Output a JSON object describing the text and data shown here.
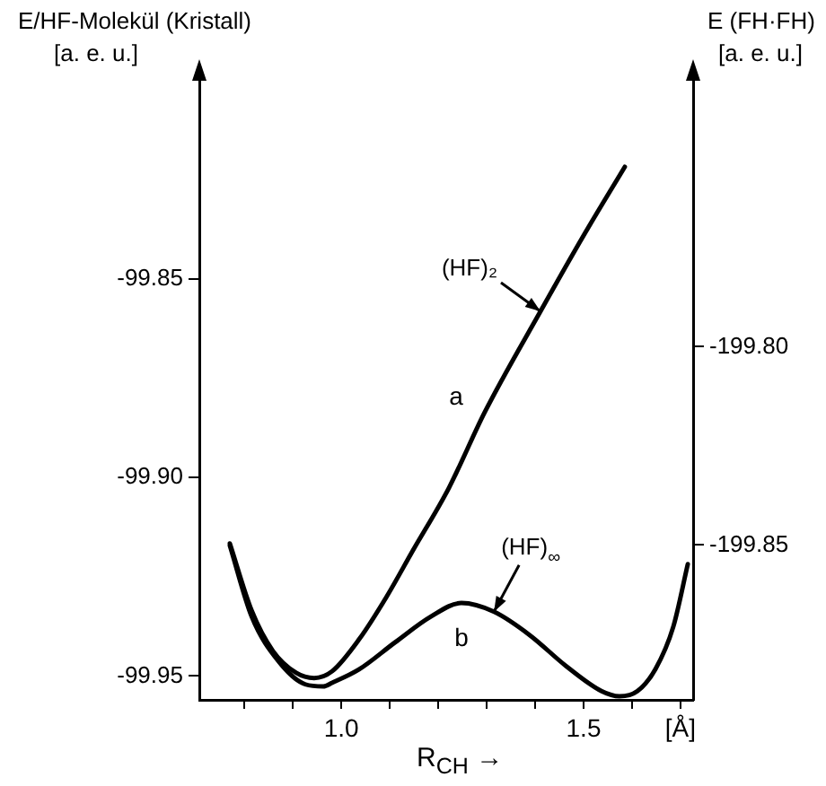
{
  "chart_data": {
    "type": "line",
    "xlabel": "R$_{CH}$ →",
    "ylabel": "E/HF-Molekül (Kristall)\n[a. e. u.]",
    "y2label": "E (FH·FH)\n[a. e. u.]",
    "x": [
      0.77,
      0.815,
      0.87,
      0.926,
      0.963,
      0.981,
      1.037,
      1.111,
      1.185,
      1.248,
      1.315,
      1.389,
      1.463,
      1.537,
      1.574,
      1.611,
      1.648,
      1.685,
      1.715
    ],
    "series": [
      {
        "name": "a",
        "color": "#000000",
        "axis": "y2",
        "x": [
          0.77,
          0.815,
          0.859,
          0.907,
          0.944,
          0.981,
          1.037,
          1.093,
          1.148,
          1.222,
          1.296,
          1.411,
          1.5,
          1.585
        ],
        "values": [
          -199.8496,
          -199.8665,
          -199.8767,
          -199.8822,
          -199.8835,
          -199.8818,
          -199.8737,
          -199.8631,
          -199.8513,
          -199.8356,
          -199.8165,
          -199.7911,
          -199.772,
          -199.7547
        ]
      },
      {
        "name": "b",
        "color": "#000000",
        "values": [
          -99.9171,
          -99.935,
          -99.9462,
          -99.9521,
          -99.9526,
          -99.9517,
          -99.9483,
          -99.9415,
          -99.935,
          -99.9316,
          -99.9338,
          -99.9397,
          -99.9474,
          -99.9538,
          -99.9551,
          -99.9538,
          -99.9483,
          -99.9376,
          -99.9218
        ]
      }
    ],
    "xlim": [
      0.707,
      1.726
    ],
    "xticks": [
      {
        "value": 0.8,
        "label": null
      },
      {
        "value": 0.9,
        "label": null
      },
      {
        "value": 1.0,
        "label": "1.0"
      },
      {
        "value": 1.1,
        "label": null
      },
      {
        "value": 1.2,
        "label": null
      },
      {
        "value": 1.3,
        "label": null
      },
      {
        "value": 1.4,
        "label": null
      },
      {
        "value": 1.5,
        "label": "1.5"
      },
      {
        "value": 1.6,
        "label": null
      },
      {
        "value": 1.7,
        "label": "[Å]"
      }
    ],
    "ylim": [
      -99.956,
      -99.8
    ],
    "yticks": [
      {
        "value": -99.95,
        "label": "-99.95"
      },
      {
        "value": -99.9,
        "label": "-99.90"
      },
      {
        "value": -99.85,
        "label": "-99.85"
      }
    ],
    "y2lim": [
      -199.889,
      -199.733
    ],
    "y2ticks": [
      {
        "value": -199.85,
        "label": "-199.85"
      },
      {
        "value": -199.8,
        "label": "-199.80"
      }
    ],
    "annotations": [
      {
        "text": "(HF)₂",
        "x": 1.411,
        "y": -99.8581
      },
      {
        "text": "(HF)$_{∞}$",
        "x": 1.315,
        "y": -99.9338
      }
    ],
    "grid": false,
    "legend": false,
    "marker": "none",
    "line_style": "solid"
  }
}
